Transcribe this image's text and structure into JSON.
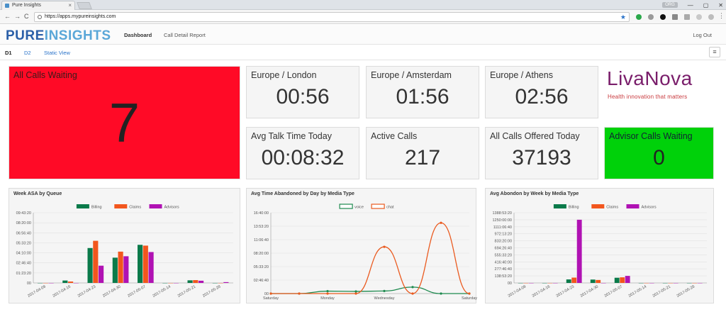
{
  "browser": {
    "tab_title": "Pure Insights",
    "tab_close": "×",
    "url": "https://apps.mypureinsights.com",
    "profile": "ORG",
    "win_min": "—",
    "win_max": "▢",
    "win_close": "✕",
    "back": "←",
    "forward": "→",
    "reload": "C",
    "star": "★"
  },
  "app": {
    "logo_a": "PURE",
    "logo_b": "INSIGHTS",
    "nav": [
      "Dashboard",
      "Call Detail Report"
    ],
    "logout": "Log Out",
    "subtabs": [
      "D1",
      "D2",
      "Static View"
    ],
    "menu_icon": "≡"
  },
  "tiles": {
    "all_calls_waiting": {
      "title": "All Calls Waiting",
      "value": "7"
    },
    "london": {
      "title": "Europe / London",
      "value": "00:56"
    },
    "amsterdam": {
      "title": "Europe / Amsterdam",
      "value": "01:56"
    },
    "athens": {
      "title": "Europe / Athens",
      "value": "02:56"
    },
    "avg_talk": {
      "title": "Avg Talk Time Today",
      "value": "00:08:32"
    },
    "active_calls": {
      "title": "Active Calls",
      "value": "217"
    },
    "offered": {
      "title": "All Calls Offered Today",
      "value": "37193"
    },
    "advisor_waiting": {
      "title": "Advisor Calls Waiting",
      "value": "0"
    }
  },
  "livanova": {
    "name_a": "Liva",
    "name_b": "Nova",
    "tagline": "Health innovation that matters"
  },
  "colors": {
    "red": "#ff0a26",
    "green": "#00d10a",
    "billing": "#0a7a4a",
    "claims": "#f2561d",
    "advisors": "#b012b3",
    "voice": "#1e8a4f",
    "chat": "#ea5a1f"
  },
  "chart_data": [
    {
      "type": "bar",
      "title": "Week ASA by Queue",
      "categories": [
        "2017-04-09",
        "2017-04-16",
        "2017-04-23",
        "2017-04-30",
        "2017-05-07",
        "2017-05-14",
        "2017-05-21",
        "2017-05-28"
      ],
      "series": [
        {
          "name": "Billing",
          "values": [
            0,
            1200,
            17400,
            12600,
            19000,
            0,
            1300,
            0
          ]
        },
        {
          "name": "Claims",
          "values": [
            0,
            700,
            21000,
            15600,
            18600,
            0,
            1400,
            0
          ]
        },
        {
          "name": "Advisors",
          "values": [
            0,
            0,
            8600,
            13300,
            15400,
            0,
            1100,
            400
          ]
        }
      ],
      "yticks": [
        "00",
        "01:23:20",
        "02:46:40",
        "04:10:00",
        "05:33:20",
        "06:56:40",
        "08:20:00",
        "09:43:20"
      ],
      "ylim": [
        0,
        35000
      ]
    },
    {
      "type": "line",
      "title": "Avg Time Abandoned by Day by Media Type",
      "categories": [
        "Saturday",
        "Sunday",
        "Monday",
        "Tuesday",
        "Wednesday",
        "Thursday",
        "Friday",
        "Saturday"
      ],
      "xticks_shown": [
        "Saturday",
        "Monday",
        "Wednesday",
        "Saturday"
      ],
      "series": [
        {
          "name": "voice",
          "values": [
            0,
            0,
            1800,
            1600,
            1900,
            4800,
            0,
            0
          ]
        },
        {
          "name": "chat",
          "values": [
            0,
            0,
            0,
            0,
            34700,
            0,
            52500,
            0
          ]
        }
      ],
      "yticks": [
        "00",
        "02:46:40",
        "05:33:20",
        "08:20:00",
        "11:06:40",
        "13:53:20",
        "16:40:00"
      ],
      "ylim": [
        0,
        60000
      ]
    },
    {
      "type": "bar",
      "title": "Avg Abondon by Week by Media Type",
      "categories": [
        "2017-04-09",
        "2017-04-16",
        "2017-04-23",
        "2017-04-30",
        "2017-05-07",
        "2017-05-14",
        "2017-05-21",
        "2017-05-28"
      ],
      "series": [
        {
          "name": "Billing",
          "values": [
            0,
            0,
            250000,
            240000,
            370000,
            0,
            0,
            0
          ]
        },
        {
          "name": "Claims",
          "values": [
            0,
            0,
            380000,
            210000,
            400000,
            0,
            0,
            0
          ]
        },
        {
          "name": "Advisors",
          "values": [
            0,
            0,
            4500000,
            0,
            500000,
            0,
            0,
            0
          ]
        }
      ],
      "yticks": [
        "00",
        "138:53:20",
        "277:46:40",
        "416:40:00",
        "555:33:20",
        "694:26:40",
        "833:20:00",
        "972:13:20",
        "1111:06:40",
        "1250:00:00",
        "1388:53:20"
      ],
      "ylim": [
        0,
        5000000
      ]
    }
  ]
}
